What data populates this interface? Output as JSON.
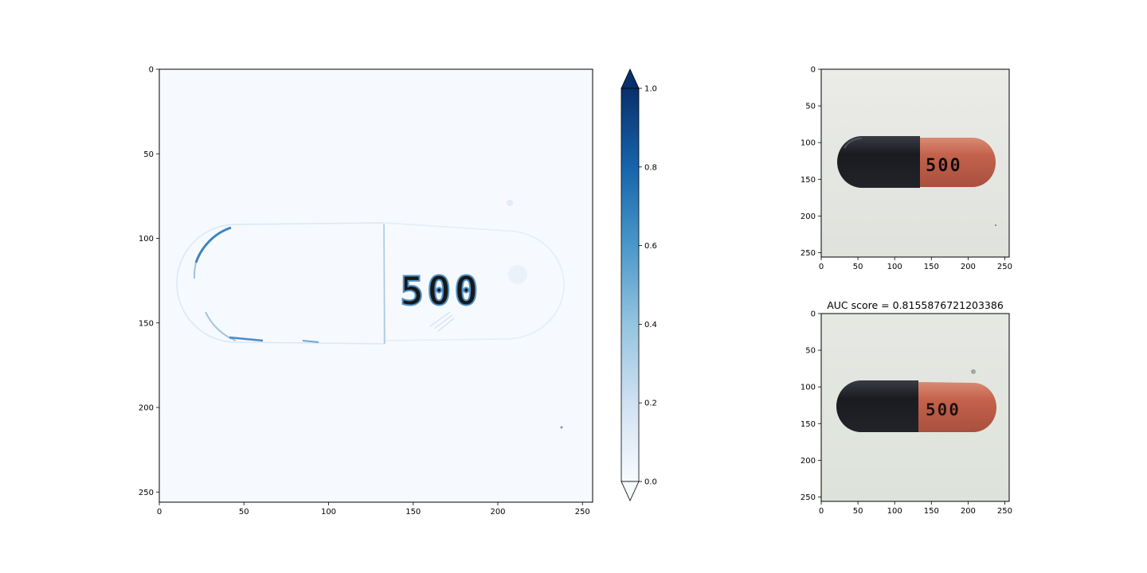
{
  "chart_data": [
    {
      "type": "heatmap",
      "name": "anomaly-map",
      "xlim": [
        0,
        256
      ],
      "ylim": [
        256,
        0
      ],
      "x_ticks": [
        0,
        50,
        100,
        150,
        200,
        250
      ],
      "y_ticks": [
        0,
        50,
        100,
        150,
        200,
        250
      ],
      "colormap": "Blues",
      "capsule_text": "500",
      "colorbar": {
        "min": 0.0,
        "max": 1.0,
        "ticks": [
          "0.0",
          "0.2",
          "0.4",
          "0.6",
          "0.8",
          "1.0"
        ],
        "extend": "both"
      }
    },
    {
      "type": "image",
      "name": "input-image",
      "xlim": [
        0,
        256
      ],
      "ylim": [
        256,
        0
      ],
      "x_ticks": [
        0,
        50,
        100,
        150,
        200,
        250
      ],
      "y_ticks": [
        0,
        50,
        100,
        150,
        200,
        250
      ],
      "capsule_text": "500",
      "colors": {
        "dark_half": "#1c1d22",
        "orange_half": "#c46450",
        "background": "#e6e6e2"
      }
    },
    {
      "type": "image",
      "name": "reconstruction",
      "title": "AUC score = 0.8155876721203386",
      "xlim": [
        0,
        256
      ],
      "ylim": [
        256,
        0
      ],
      "x_ticks": [
        0,
        50,
        100,
        150,
        200,
        250
      ],
      "y_ticks": [
        0,
        50,
        100,
        150,
        200,
        250
      ],
      "capsule_text": "500",
      "colors": {
        "dark_half": "#1e2028",
        "orange_half": "#c0604c",
        "background": "#e3e6e0"
      }
    }
  ]
}
